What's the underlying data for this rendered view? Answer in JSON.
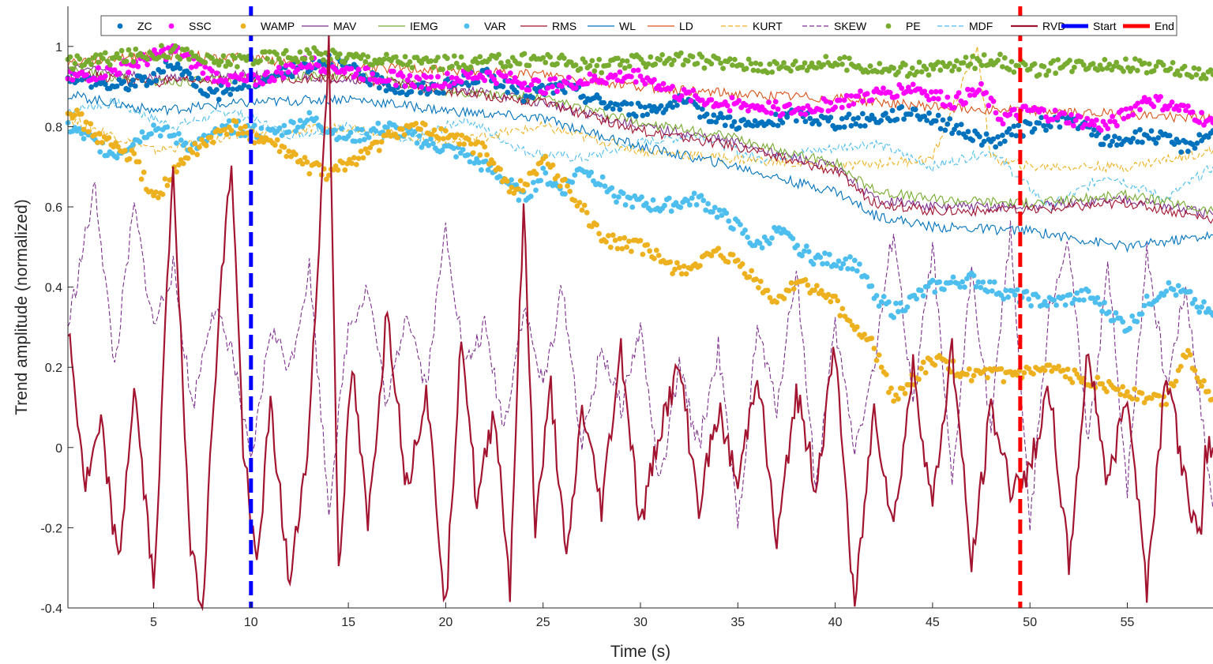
{
  "chart_data": {
    "type": "line",
    "title": "",
    "xlabel": "Time (s)",
    "ylabel": "Trend amplitude (normalized)",
    "xlim": [
      0.6,
      59.4
    ],
    "ylim": [
      -0.4,
      1.1
    ],
    "xticks": [
      5,
      10,
      15,
      20,
      25,
      30,
      35,
      40,
      45,
      50,
      55
    ],
    "xtick_labels": [
      "5",
      "10",
      "15",
      "20",
      "25",
      "30",
      "35",
      "40",
      "45",
      "50",
      "55"
    ],
    "yticks": [
      -0.4,
      -0.2,
      0,
      0.2,
      0.4,
      0.6,
      0.8,
      1
    ],
    "ytick_labels": [
      "-0.4",
      "-0.2",
      "0",
      "0.2",
      "0.4",
      "0.6",
      "0.8",
      "1"
    ],
    "grid": false,
    "legend_position": "top",
    "series": [
      {
        "name": "ZC",
        "style": "markers",
        "color": "#0072BD",
        "x": [
          0.6,
          3,
          5,
          6,
          8,
          10,
          12,
          14,
          16,
          18,
          20,
          22,
          24,
          26,
          28,
          30,
          32,
          34,
          36,
          38,
          40,
          42,
          44,
          46,
          48,
          50,
          52,
          54,
          56,
          58,
          59.4
        ],
        "y": [
          0.93,
          0.9,
          0.92,
          0.96,
          0.88,
          0.91,
          0.94,
          0.97,
          0.92,
          0.89,
          0.9,
          0.93,
          0.88,
          0.9,
          0.86,
          0.84,
          0.86,
          0.82,
          0.8,
          0.83,
          0.81,
          0.82,
          0.84,
          0.8,
          0.76,
          0.8,
          0.82,
          0.76,
          0.78,
          0.75,
          0.79
        ]
      },
      {
        "name": "SSC",
        "style": "markers",
        "color": "#FF00FF",
        "x": [
          0.6,
          3,
          6,
          8,
          10,
          13,
          16,
          19,
          22,
          25,
          28,
          30,
          32,
          34,
          36,
          38,
          40,
          42,
          44,
          46,
          47.5,
          48.5,
          50,
          52,
          54,
          56,
          58,
          59.4
        ],
        "y": [
          0.92,
          0.94,
          0.99,
          0.93,
          0.91,
          0.96,
          0.93,
          0.91,
          0.93,
          0.9,
          0.92,
          0.93,
          0.88,
          0.86,
          0.85,
          0.84,
          0.86,
          0.88,
          0.9,
          0.86,
          0.89,
          0.82,
          0.84,
          0.82,
          0.8,
          0.87,
          0.84,
          0.81
        ]
      },
      {
        "name": "WAMP",
        "style": "markers",
        "color": "#EDB120",
        "x": [
          0.6,
          2,
          4,
          5,
          7,
          9,
          11,
          13,
          14,
          16,
          18,
          20,
          22,
          23.5,
          25,
          26,
          27,
          28,
          30,
          32,
          34,
          35,
          37,
          38,
          40,
          41,
          42,
          43,
          45,
          47,
          49,
          51,
          53,
          55,
          56,
          57,
          58,
          59.4
        ],
        "y": [
          0.85,
          0.78,
          0.72,
          0.62,
          0.74,
          0.8,
          0.76,
          0.7,
          0.68,
          0.74,
          0.8,
          0.78,
          0.74,
          0.63,
          0.72,
          0.66,
          0.6,
          0.52,
          0.5,
          0.44,
          0.48,
          0.46,
          0.36,
          0.42,
          0.36,
          0.3,
          0.25,
          0.12,
          0.22,
          0.18,
          0.18,
          0.19,
          0.17,
          0.14,
          0.12,
          0.12,
          0.24,
          0.12
        ]
      },
      {
        "name": "MAV",
        "style": "line",
        "color": "#7E2F8E",
        "x": [
          0.6,
          5,
          10,
          15,
          20,
          25,
          30,
          35,
          38,
          40,
          42,
          45,
          50,
          55,
          59.4
        ],
        "y": [
          0.95,
          0.92,
          0.93,
          0.92,
          0.9,
          0.86,
          0.8,
          0.76,
          0.72,
          0.7,
          0.62,
          0.6,
          0.6,
          0.62,
          0.58
        ]
      },
      {
        "name": "IEMG",
        "style": "line",
        "color": "#77AC30",
        "x": [
          0.6,
          5,
          10,
          15,
          20,
          25,
          30,
          35,
          38,
          40,
          42,
          45,
          50,
          55,
          59.4
        ],
        "y": [
          0.94,
          0.91,
          0.92,
          0.93,
          0.89,
          0.87,
          0.81,
          0.77,
          0.73,
          0.71,
          0.64,
          0.62,
          0.61,
          0.63,
          0.59
        ]
      },
      {
        "name": "VAR",
        "style": "markers",
        "color": "#4DBEEE",
        "x": [
          0.6,
          2,
          3,
          5,
          7,
          9,
          11,
          13,
          15,
          17,
          19,
          21,
          23,
          24,
          25,
          26,
          27,
          29,
          31,
          33,
          35,
          36,
          37,
          39,
          41,
          42,
          43,
          45,
          47,
          49,
          51,
          53,
          55,
          56,
          57,
          58,
          59.4
        ],
        "y": [
          0.8,
          0.76,
          0.73,
          0.8,
          0.75,
          0.8,
          0.78,
          0.82,
          0.77,
          0.8,
          0.76,
          0.73,
          0.67,
          0.62,
          0.68,
          0.64,
          0.7,
          0.62,
          0.6,
          0.62,
          0.55,
          0.5,
          0.54,
          0.47,
          0.46,
          0.38,
          0.34,
          0.4,
          0.42,
          0.38,
          0.36,
          0.38,
          0.3,
          0.36,
          0.4,
          0.38,
          0.33
        ]
      },
      {
        "name": "RMS",
        "style": "line",
        "color": "#A2142F",
        "x": [
          0.6,
          5,
          10,
          15,
          20,
          25,
          30,
          35,
          38,
          40,
          42,
          45,
          50,
          55,
          59.4
        ],
        "y": [
          0.93,
          0.91,
          0.92,
          0.92,
          0.89,
          0.86,
          0.79,
          0.75,
          0.71,
          0.69,
          0.61,
          0.59,
          0.59,
          0.61,
          0.57
        ]
      },
      {
        "name": "WL",
        "style": "line",
        "color": "#0072BD",
        "x": [
          0.6,
          5,
          10,
          15,
          20,
          25,
          30,
          35,
          38,
          40,
          42,
          45,
          50,
          55,
          59.4
        ],
        "y": [
          0.88,
          0.84,
          0.86,
          0.87,
          0.84,
          0.82,
          0.75,
          0.7,
          0.66,
          0.64,
          0.58,
          0.55,
          0.54,
          0.5,
          0.53
        ]
      },
      {
        "name": "LD",
        "style": "line",
        "color": "#D95319",
        "x": [
          0.6,
          5,
          10,
          15,
          20,
          25,
          30,
          35,
          40,
          45,
          50,
          55,
          59.4
        ],
        "y": [
          0.96,
          0.98,
          0.97,
          0.95,
          0.94,
          0.93,
          0.9,
          0.88,
          0.87,
          0.85,
          0.84,
          0.83,
          0.82
        ]
      },
      {
        "name": "KURT",
        "style": "dashed",
        "color": "#EDB120",
        "x": [
          0.6,
          5,
          10,
          15,
          20,
          25,
          30,
          35,
          40,
          45,
          47.3,
          48,
          50,
          55,
          59.4
        ],
        "y": [
          0.82,
          0.74,
          0.78,
          0.8,
          0.76,
          0.8,
          0.74,
          0.72,
          0.7,
          0.72,
          1.0,
          0.72,
          0.7,
          0.7,
          0.74
        ]
      },
      {
        "name": "SKEW",
        "style": "dashed",
        "color": "#7E2F8E",
        "x": [
          0.6,
          2,
          3,
          4,
          5,
          6,
          7,
          8,
          9,
          10,
          11,
          12,
          13,
          14,
          15,
          16,
          17,
          18,
          19,
          20,
          21,
          22,
          23,
          24,
          25,
          26,
          27,
          28,
          29,
          30,
          31,
          32,
          33,
          34,
          35,
          36,
          37,
          38,
          39,
          40,
          41,
          42,
          43,
          44,
          45,
          46,
          47,
          48,
          49,
          50,
          51,
          52,
          53,
          54,
          55,
          56,
          57,
          58,
          59.4
        ],
        "y": [
          0.3,
          0.65,
          0.2,
          0.6,
          0.3,
          0.45,
          0.1,
          0.35,
          0.25,
          -0.05,
          0.3,
          0.2,
          0.45,
          -0.15,
          0.3,
          0.4,
          0.1,
          0.35,
          0.15,
          0.55,
          0.2,
          0.3,
          0.05,
          0.35,
          0.15,
          0.4,
          0.0,
          0.25,
          0.1,
          0.3,
          -0.1,
          0.2,
          0.0,
          0.25,
          -0.2,
          0.3,
          0.1,
          0.45,
          -0.1,
          0.3,
          0.0,
          0.2,
          0.55,
          0.1,
          0.5,
          -0.1,
          0.45,
          0.05,
          0.55,
          -0.2,
          0.35,
          0.5,
          0.0,
          0.45,
          -0.1,
          0.5,
          0.15,
          0.4,
          -0.15
        ]
      },
      {
        "name": "PE",
        "style": "markers",
        "color": "#77AC30",
        "x": [
          0.6,
          3,
          6,
          8,
          10,
          13,
          16,
          19,
          22,
          25,
          28,
          31,
          34,
          37,
          40,
          43,
          46,
          48,
          50,
          53,
          56,
          59.4
        ],
        "y": [
          0.96,
          0.97,
          0.99,
          0.96,
          0.97,
          0.98,
          0.97,
          0.96,
          0.96,
          0.97,
          0.95,
          0.97,
          0.96,
          0.95,
          0.96,
          0.94,
          0.95,
          0.97,
          0.94,
          0.96,
          0.95,
          0.93
        ]
      },
      {
        "name": "MDF",
        "style": "dashed",
        "color": "#4DBEEE",
        "x": [
          0.6,
          3,
          6,
          9,
          12,
          15,
          18,
          21,
          24,
          27,
          30,
          33,
          36,
          39,
          42,
          45,
          48,
          51,
          54,
          57,
          59.4
        ],
        "y": [
          0.84,
          0.86,
          0.8,
          0.84,
          0.78,
          0.8,
          0.76,
          0.82,
          0.74,
          0.72,
          0.76,
          0.78,
          0.72,
          0.74,
          0.76,
          0.7,
          0.74,
          0.6,
          0.68,
          0.62,
          0.7
        ]
      },
      {
        "name": "RVD",
        "style": "line",
        "color": "#A2142F",
        "x": [
          0.6,
          1.5,
          2.3,
          3.2,
          4,
          5,
          6,
          6.8,
          7.5,
          8.3,
          9,
          9.6,
          10.3,
          11,
          12,
          13,
          14,
          14.5,
          15.2,
          16,
          17,
          18,
          19,
          20,
          20.8,
          21.6,
          22.5,
          23.3,
          24,
          24.6,
          25.4,
          26.2,
          27,
          28,
          29,
          30,
          31,
          32,
          33,
          34,
          35,
          36,
          37,
          38,
          39,
          40,
          41,
          42,
          43,
          44,
          45,
          46,
          47,
          48,
          49,
          50,
          51,
          52,
          53,
          54,
          55,
          56,
          57,
          58,
          58.8,
          59,
          59.4
        ],
        "y": [
          0.3,
          -0.1,
          0.05,
          -0.3,
          0.15,
          -0.35,
          0.72,
          -0.2,
          -0.4,
          0.3,
          0.72,
          0.0,
          -0.3,
          0.1,
          -0.35,
          0.05,
          1.0,
          -0.3,
          0.2,
          -0.2,
          0.35,
          -0.1,
          0.15,
          -0.4,
          0.3,
          -0.15,
          0.1,
          -0.35,
          0.6,
          -0.2,
          0.15,
          -0.3,
          0.1,
          -0.15,
          0.25,
          -0.2,
          0.05,
          0.2,
          -0.15,
          0.1,
          -0.1,
          0.2,
          -0.25,
          0.15,
          -0.1,
          0.25,
          -0.4,
          0.1,
          -0.2,
          0.2,
          -0.15,
          0.25,
          -0.3,
          0.1,
          -0.1,
          -0.05,
          0.15,
          -0.3,
          0.25,
          -0.1,
          0.15,
          -0.35,
          0.2,
          -0.1,
          -0.25,
          0.0,
          0.0
        ]
      },
      {
        "name": "Start",
        "style": "vline",
        "color": "#0000FF",
        "x": [
          10,
          10
        ],
        "y": [
          -0.4,
          1.1
        ]
      },
      {
        "name": "End",
        "style": "vline",
        "color": "#FF0000",
        "x": [
          49.5,
          49.5
        ],
        "y": [
          -0.4,
          1.1
        ]
      }
    ]
  }
}
